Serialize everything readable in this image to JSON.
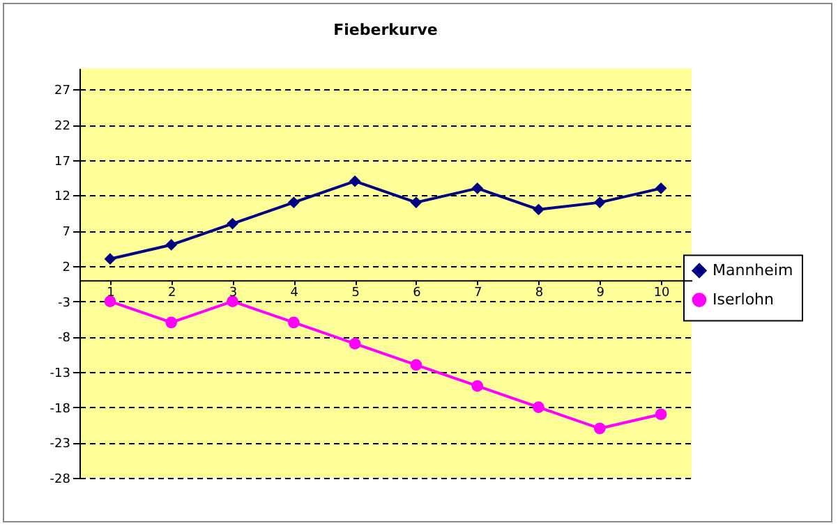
{
  "chart_data": {
    "type": "line",
    "title": "Fieberkurve",
    "categories": [
      "1",
      "2",
      "3",
      "4",
      "5",
      "6",
      "7",
      "8",
      "9",
      "10"
    ],
    "series": [
      {
        "name": "Mannheim",
        "color": "#000080",
        "marker": "diamond",
        "values": [
          3,
          5,
          8,
          11,
          14,
          11,
          13,
          10,
          11,
          13
        ]
      },
      {
        "name": "Iserlohn",
        "color": "#ff00ff",
        "marker": "circle",
        "values": [
          -3,
          -6,
          -3,
          -6,
          -9,
          -12,
          -15,
          -18,
          -21,
          -19
        ]
      }
    ],
    "ylim": [
      -28,
      30
    ],
    "yticks": [
      -28,
      -23,
      -18,
      -13,
      -8,
      -3,
      2,
      7,
      12,
      17,
      22,
      27
    ],
    "grid": "y",
    "legend": "right",
    "line_style": "solid"
  }
}
